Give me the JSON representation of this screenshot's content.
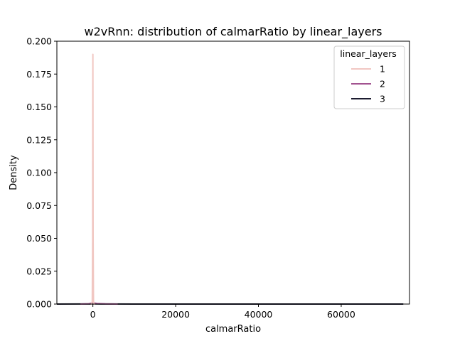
{
  "chart_data": {
    "type": "line",
    "title": "w2vRnn: distribution of calmarRatio by linear_layers",
    "xlabel": "calmarRatio",
    "ylabel": "Density",
    "xlim": [
      -8700,
      76500
    ],
    "ylim": [
      0,
      0.2
    ],
    "x_ticks": [
      0,
      20000,
      40000,
      60000
    ],
    "x_tick_labels": [
      "0",
      "20000",
      "40000",
      "60000"
    ],
    "y_ticks": [
      0,
      0.025,
      0.05,
      0.075,
      0.1,
      0.125,
      0.15,
      0.175,
      0.2
    ],
    "y_tick_labels": [
      "0.000",
      "0.025",
      "0.050",
      "0.075",
      "0.100",
      "0.125",
      "0.150",
      "0.175",
      "0.200"
    ],
    "grid": false,
    "legend": {
      "title": "linear_layers",
      "position": "top-right"
    },
    "series": [
      {
        "name": "1",
        "color": "#f1c7c2",
        "x": [
          -550,
          -300,
          -150,
          -60,
          -20,
          0,
          20,
          60,
          150,
          300,
          550
        ],
        "values": [
          0,
          0,
          0.002,
          0.05,
          0.15,
          0.19,
          0.15,
          0.05,
          0.002,
          0,
          0
        ]
      },
      {
        "name": "2",
        "color": "#a25390",
        "x": [
          -3000,
          -1000,
          -200,
          0,
          200,
          1000,
          3000,
          6000
        ],
        "values": [
          0,
          0.0002,
          0.0008,
          0.001,
          0.0008,
          0.0004,
          0.0001,
          0
        ]
      },
      {
        "name": "3",
        "color": "#1c1c30",
        "x": [
          -8700,
          -2000,
          0,
          2000,
          10000,
          30000,
          50000,
          75000
        ],
        "values": [
          0,
          5e-05,
          0.0001,
          5e-05,
          1e-05,
          3e-06,
          1e-06,
          0
        ]
      }
    ]
  }
}
